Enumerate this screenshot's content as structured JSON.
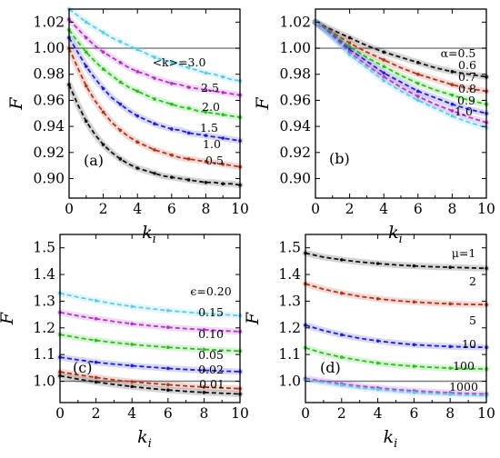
{
  "figure": {
    "x_label": "k",
    "x_sub": "i",
    "y_label": "F"
  },
  "chart_data": [
    {
      "type": "line",
      "panel": "(a)",
      "xlabel": "k_i",
      "ylabel": "F",
      "xlim": [
        0,
        10
      ],
      "ylim": [
        0.885,
        1.03
      ],
      "xticks": [
        0,
        2,
        4,
        6,
        8,
        10
      ],
      "yticks": [
        0.9,
        0.92,
        0.94,
        0.96,
        0.98,
        1.0,
        1.02
      ],
      "ytick_labels": [
        "0.90",
        "0.92",
        "0.94",
        "0.96",
        "0.98",
        "1.00",
        "1.02"
      ],
      "reference_line": 1.0,
      "x": [
        0,
        0.5,
        1,
        1.5,
        2,
        2.5,
        3,
        3.5,
        4,
        4.5,
        5,
        5.5,
        6,
        6.5,
        7,
        7.5,
        8,
        8.5,
        9,
        9.5,
        10
      ],
      "series": [
        {
          "name": "<k>=3.0",
          "color": "#5ecbe8",
          "values": [
            1.03,
            1.025,
            1.02,
            1.016,
            1.012,
            1.008,
            1.005,
            1.002,
            0.999,
            0.996,
            0.993,
            0.991,
            0.989,
            0.987,
            0.985,
            0.983,
            0.981,
            0.98,
            0.978,
            0.976,
            0.975
          ]
        },
        {
          "name": "2.5",
          "color": "#b133c9",
          "values": [
            1.022,
            1.015,
            1.008,
            1.002,
            0.997,
            0.993,
            0.989,
            0.985,
            0.982,
            0.98,
            0.977,
            0.975,
            0.973,
            0.972,
            0.97,
            0.969,
            0.968,
            0.967,
            0.966,
            0.965,
            0.964
          ]
        },
        {
          "name": "2.0",
          "color": "#2bbf1e",
          "values": [
            1.014,
            1.005,
            0.997,
            0.99,
            0.984,
            0.979,
            0.974,
            0.97,
            0.967,
            0.964,
            0.961,
            0.959,
            0.957,
            0.955,
            0.954,
            0.952,
            0.951,
            0.95,
            0.949,
            0.948,
            0.947
          ]
        },
        {
          "name": "1.5",
          "color": "#1f1fd1",
          "values": [
            1.008,
            0.997,
            0.986,
            0.977,
            0.969,
            0.962,
            0.957,
            0.952,
            0.948,
            0.945,
            0.942,
            0.94,
            0.938,
            0.937,
            0.935,
            0.934,
            0.933,
            0.932,
            0.931,
            0.93,
            0.929
          ]
        },
        {
          "name": "1.0",
          "color": "#b0341a",
          "values": [
            1.0,
            0.985,
            0.971,
            0.96,
            0.951,
            0.943,
            0.937,
            0.932,
            0.928,
            0.925,
            0.922,
            0.92,
            0.918,
            0.916,
            0.915,
            0.914,
            0.913,
            0.912,
            0.911,
            0.91,
            0.909
          ]
        },
        {
          "name": "0.5",
          "color": "#111111",
          "values": [
            0.972,
            0.957,
            0.944,
            0.934,
            0.926,
            0.92,
            0.915,
            0.911,
            0.908,
            0.906,
            0.904,
            0.902,
            0.901,
            0.9,
            0.899,
            0.898,
            0.897,
            0.897,
            0.896,
            0.896,
            0.895
          ]
        }
      ],
      "grid": false
    },
    {
      "type": "line",
      "panel": "(b)",
      "xlabel": "k_i",
      "ylabel": "F",
      "xlim": [
        0,
        10
      ],
      "ylim": [
        0.885,
        1.03
      ],
      "xticks": [
        0,
        2,
        4,
        6,
        8,
        10
      ],
      "yticks": [
        0.9,
        0.92,
        0.94,
        0.96,
        0.98,
        1.0,
        1.02
      ],
      "ytick_labels": [
        "0.90",
        "0.92",
        "0.94",
        "0.96",
        "0.98",
        "1.00",
        "1.02"
      ],
      "reference_line": 1.0,
      "x": [
        0,
        1,
        2,
        3,
        4,
        5,
        6,
        7,
        8,
        9,
        10
      ],
      "series": [
        {
          "name": "α=0.5",
          "color": "#111111",
          "values": [
            1.02,
            1.014,
            1.008,
            1.002,
            0.997,
            0.993,
            0.989,
            0.985,
            0.982,
            0.98,
            0.978
          ]
        },
        {
          "name": "0.6",
          "color": "#b0341a",
          "values": [
            1.02,
            1.012,
            1.004,
            0.997,
            0.991,
            0.985,
            0.98,
            0.976,
            0.972,
            0.969,
            0.967
          ]
        },
        {
          "name": "0.7",
          "color": "#2bbf1e",
          "values": [
            1.02,
            1.011,
            1.001,
            0.993,
            0.986,
            0.979,
            0.973,
            0.968,
            0.964,
            0.96,
            0.957
          ]
        },
        {
          "name": "0.8",
          "color": "#1f1fd1",
          "values": [
            1.02,
            1.01,
            0.999,
            0.99,
            0.981,
            0.974,
            0.967,
            0.962,
            0.957,
            0.953,
            0.95
          ]
        },
        {
          "name": "0.9",
          "color": "#b133c9",
          "values": [
            1.02,
            1.009,
            0.997,
            0.987,
            0.978,
            0.97,
            0.963,
            0.957,
            0.952,
            0.947,
            0.943
          ]
        },
        {
          "name": "1.0",
          "color": "#5ecbe8",
          "values": [
            1.02,
            1.008,
            0.995,
            0.985,
            0.975,
            0.967,
            0.96,
            0.954,
            0.948,
            0.943,
            0.939
          ]
        }
      ],
      "grid": false
    },
    {
      "type": "line",
      "panel": "(c)",
      "xlabel": "k_i",
      "ylabel": "F",
      "xlim": [
        0,
        10
      ],
      "ylim": [
        0.92,
        1.55
      ],
      "xticks": [
        0,
        2,
        4,
        6,
        8,
        10
      ],
      "yticks": [
        1.0,
        1.1,
        1.2,
        1.3,
        1.4,
        1.5
      ],
      "ytick_labels": [
        "1.0",
        "1.1",
        "1.2",
        "1.3",
        "1.4",
        "1.5"
      ],
      "reference_line": 1.0,
      "x": [
        0,
        1,
        2,
        3,
        4,
        5,
        6,
        7,
        8,
        9,
        10
      ],
      "series": [
        {
          "name": "ϵ=0.20",
          "color": "#5ecbe8",
          "values": [
            1.33,
            1.315,
            1.302,
            1.29,
            1.28,
            1.272,
            1.265,
            1.259,
            1.254,
            1.25,
            1.246
          ]
        },
        {
          "name": "0.15",
          "color": "#b133c9",
          "values": [
            1.258,
            1.245,
            1.234,
            1.224,
            1.215,
            1.208,
            1.202,
            1.197,
            1.193,
            1.189,
            1.186
          ]
        },
        {
          "name": "0.10",
          "color": "#2bbf1e",
          "values": [
            1.175,
            1.163,
            1.153,
            1.145,
            1.138,
            1.132,
            1.127,
            1.123,
            1.119,
            1.116,
            1.113
          ]
        },
        {
          "name": "0.05",
          "color": "#1f1fd1",
          "values": [
            1.09,
            1.08,
            1.071,
            1.064,
            1.058,
            1.053,
            1.048,
            1.044,
            1.041,
            1.038,
            1.036
          ]
        },
        {
          "name": "0.02",
          "color": "#b0341a",
          "values": [
            1.035,
            1.024,
            1.014,
            1.005,
            0.998,
            0.992,
            0.987,
            0.982,
            0.978,
            0.975,
            0.972
          ]
        },
        {
          "name": "0.01",
          "color": "#111111",
          "values": [
            1.02,
            1.008,
            0.997,
            0.988,
            0.98,
            0.973,
            0.967,
            0.962,
            0.958,
            0.955,
            0.952
          ]
        }
      ],
      "grid": false
    },
    {
      "type": "line",
      "panel": "(d)",
      "xlabel": "k_i",
      "ylabel": "F",
      "xlim": [
        0,
        10
      ],
      "ylim": [
        0.92,
        1.55
      ],
      "xticks": [
        0,
        2,
        4,
        6,
        8,
        10
      ],
      "yticks": [
        1.0,
        1.1,
        1.2,
        1.3,
        1.4,
        1.5
      ],
      "ytick_labels": [
        "1.0",
        "1.1",
        "1.2",
        "1.3",
        "1.4",
        "1.5"
      ],
      "reference_line": 1.0,
      "x": [
        0,
        1,
        2,
        3,
        4,
        5,
        6,
        7,
        8,
        9,
        10
      ],
      "series": [
        {
          "name": "μ=1",
          "color": "#111111",
          "values": [
            1.48,
            1.465,
            1.455,
            1.447,
            1.441,
            1.436,
            1.432,
            1.429,
            1.427,
            1.425,
            1.423
          ]
        },
        {
          "name": "2",
          "color": "#b0341a",
          "values": [
            1.365,
            1.345,
            1.33,
            1.318,
            1.309,
            1.302,
            1.297,
            1.293,
            1.29,
            1.288,
            1.287
          ]
        },
        {
          "name": "5",
          "color": "#1f1fd1",
          "values": [
            1.21,
            1.19,
            1.174,
            1.161,
            1.151,
            1.143,
            1.137,
            1.133,
            1.13,
            1.128,
            1.127
          ]
        },
        {
          "name": "10",
          "color": "#2bbf1e",
          "values": [
            1.125,
            1.105,
            1.09,
            1.078,
            1.068,
            1.061,
            1.056,
            1.052,
            1.049,
            1.047,
            1.046
          ]
        },
        {
          "name": "100",
          "color": "#b133c9",
          "values": [
            1.01,
            1.0,
            0.99,
            0.982,
            0.975,
            0.969,
            0.964,
            0.96,
            0.957,
            0.954,
            0.952
          ]
        },
        {
          "name": "1000",
          "color": "#5ecbe8",
          "values": [
            1.005,
            0.995,
            0.985,
            0.976,
            0.969,
            0.963,
            0.958,
            0.954,
            0.951,
            0.948,
            0.946
          ]
        }
      ],
      "grid": false
    }
  ]
}
